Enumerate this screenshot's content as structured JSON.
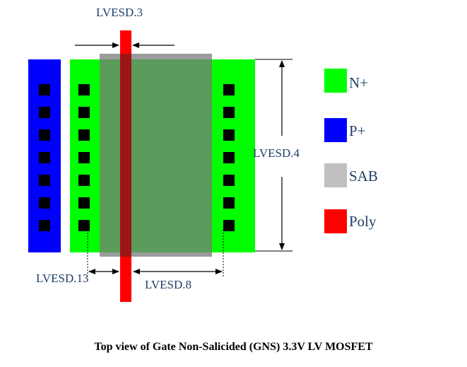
{
  "colors": {
    "n_plus": "#00ff00",
    "p_plus": "#0000ff",
    "sab": "#a6a6a6",
    "poly": "#ff0000",
    "contact": "#000000"
  },
  "labels": {
    "lvesd3": "LVESD.3",
    "lvesd4": "LVESD.4",
    "lvesd13": "LVESD.13",
    "lvesd8": "LVESD.8"
  },
  "legend": [
    {
      "label": "N+",
      "color": "#00ff00"
    },
    {
      "label": "P+",
      "color": "#0000ff"
    },
    {
      "label": "SAB",
      "color": "#c0c0c0"
    },
    {
      "label": "Poly",
      "color": "#ff0000"
    }
  ],
  "caption": "Top view of Gate Non-Salicided (GNS) 3.3V LV MOSFET"
}
